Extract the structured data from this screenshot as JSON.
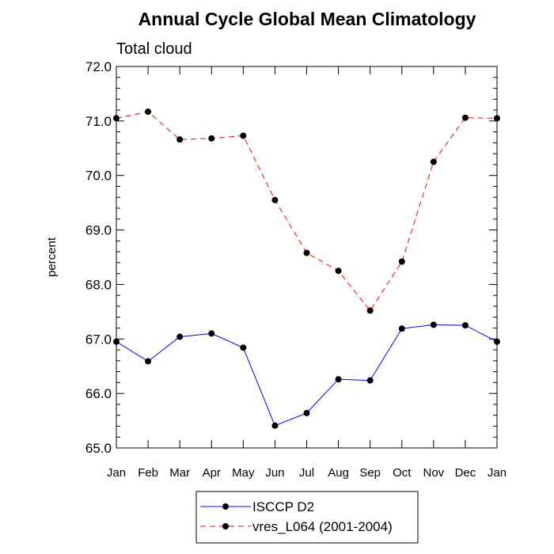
{
  "chart_data": {
    "type": "line",
    "title": "Annual Cycle Global Mean Climatology",
    "subtitle": "Total cloud",
    "xlabel": "",
    "ylabel": "percent",
    "ylim": [
      65.0,
      72.0
    ],
    "yticks": [
      "65.0",
      "66.0",
      "67.0",
      "68.0",
      "69.0",
      "70.0",
      "71.0",
      "72.0"
    ],
    "categories": [
      "Jan",
      "Feb",
      "Mar",
      "Apr",
      "May",
      "Jun",
      "Jul",
      "Aug",
      "Sep",
      "Oct",
      "Nov",
      "Dec",
      "Jan"
    ],
    "grid": false,
    "legend_position": "bottom",
    "series": [
      {
        "name": "ISCCP D2",
        "color": "#0000ff",
        "line_style": "solid",
        "marker": "filled-circle",
        "values": [
          66.95,
          66.59,
          67.04,
          67.1,
          66.84,
          65.41,
          65.64,
          66.26,
          66.24,
          67.19,
          67.26,
          67.25,
          66.95
        ]
      },
      {
        "name": "vres_L064 (2001-2004)",
        "color": "#ff0000",
        "line_style": "dashed",
        "marker": "filled-circle",
        "values": [
          71.05,
          71.17,
          70.66,
          70.68,
          70.73,
          69.55,
          68.58,
          68.25,
          67.52,
          68.42,
          70.25,
          71.06,
          71.05
        ]
      }
    ]
  }
}
